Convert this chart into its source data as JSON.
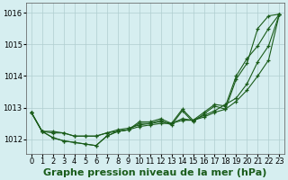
{
  "x": [
    0,
    1,
    2,
    3,
    4,
    5,
    6,
    7,
    8,
    9,
    10,
    11,
    12,
    13,
    14,
    15,
    16,
    17,
    18,
    19,
    20,
    21,
    22,
    23
  ],
  "line1": [
    1012.85,
    1012.25,
    1012.05,
    1011.95,
    1011.9,
    1011.85,
    1011.8,
    1012.1,
    1012.25,
    1012.3,
    1012.55,
    1012.55,
    1012.65,
    1012.5,
    1012.95,
    1012.6,
    1012.85,
    1013.1,
    1013.05,
    1014.0,
    1014.55,
    1014.95,
    1015.5,
    1015.95
  ],
  "line2": [
    1012.85,
    1012.25,
    1012.05,
    1011.95,
    1011.9,
    1011.85,
    1011.8,
    1012.1,
    1012.25,
    1012.3,
    1012.5,
    1012.5,
    1012.6,
    1012.45,
    1012.9,
    1012.55,
    1012.8,
    1013.05,
    1012.95,
    1013.9,
    1014.4,
    1015.5,
    1015.9,
    1015.95
  ],
  "line3": [
    1012.85,
    1012.25,
    1012.25,
    1012.2,
    1012.1,
    1012.1,
    1012.1,
    1012.2,
    1012.3,
    1012.35,
    1012.45,
    1012.5,
    1012.55,
    1012.5,
    1012.65,
    1012.6,
    1012.75,
    1012.9,
    1013.1,
    1013.3,
    1013.75,
    1014.45,
    1014.95,
    1015.95
  ],
  "line4": [
    1012.85,
    1012.25,
    1012.2,
    1012.2,
    1012.1,
    1012.1,
    1012.1,
    1012.2,
    1012.25,
    1012.3,
    1012.4,
    1012.45,
    1012.5,
    1012.5,
    1012.6,
    1012.6,
    1012.7,
    1012.85,
    1012.95,
    1013.2,
    1013.55,
    1014.0,
    1014.5,
    1015.95
  ],
  "line_color": "#1a5c1a",
  "bg_color": "#d6eef0",
  "grid_color": "#b0cdd0",
  "title": "Graphe pression niveau de la mer (hPa)",
  "ylim": [
    1011.55,
    1016.3
  ],
  "yticks": [
    1012,
    1013,
    1014,
    1015,
    1016
  ],
  "title_fontsize": 8.0,
  "tick_fontsize": 6.0
}
